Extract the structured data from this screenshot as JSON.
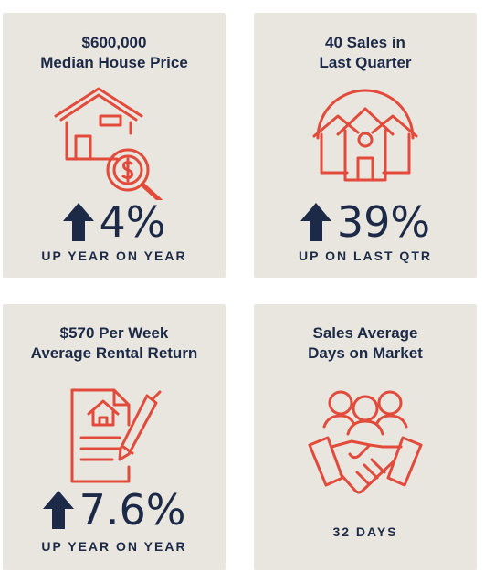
{
  "colors": {
    "card": "#e9e6df",
    "text": "#1c2a47",
    "icon": "#e24a3b"
  },
  "cards": [
    {
      "title_line1": "$600,000",
      "title_line2": "Median House Price",
      "icon": "house-search-icon",
      "value": "4%",
      "caption": "UP YEAR ON YEAR"
    },
    {
      "title_line1": "40 Sales in",
      "title_line2": "Last Quarter",
      "icon": "houses-neighborhood-icon",
      "value": "39%",
      "caption": "UP ON LAST QTR"
    },
    {
      "title_line1": "$570 Per Week",
      "title_line2": "Average Rental Return",
      "icon": "lease-document-pen-icon",
      "value": "7.6%",
      "caption": "UP YEAR ON YEAR"
    },
    {
      "title_line1": "Sales Average",
      "title_line2": "Days on Market",
      "icon": "handshake-people-icon",
      "caption": "32 DAYS"
    }
  ]
}
